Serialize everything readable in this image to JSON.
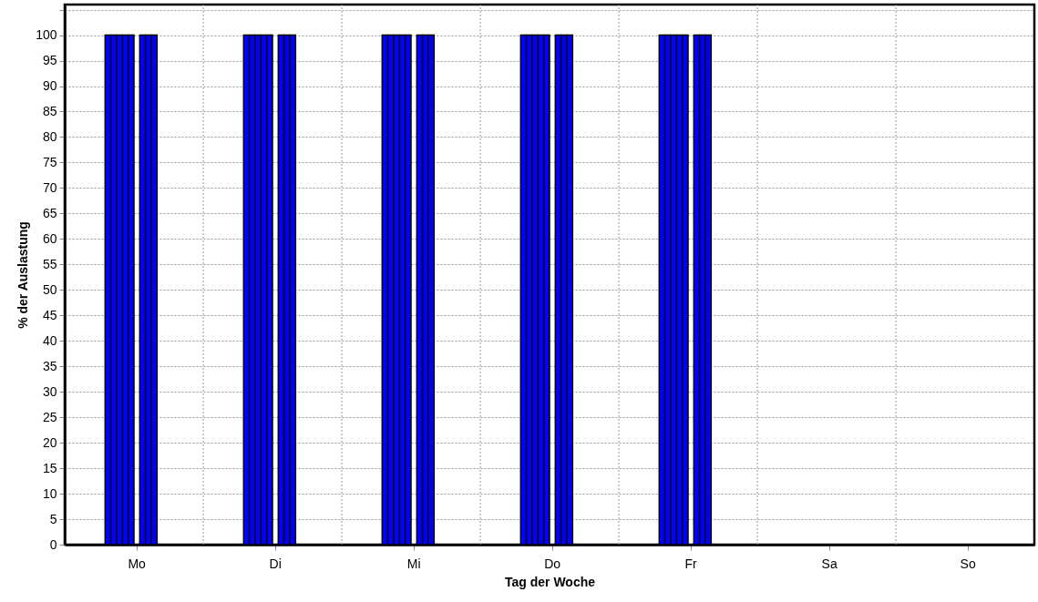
{
  "chart_data": {
    "type": "bar",
    "xlabel": "Tag der Woche",
    "ylabel": "% der Auslastung",
    "categories": [
      null,
      null,
      null,
      null,
      null,
      null,
      null,
      null,
      null,
      null,
      null,
      null,
      "Mo",
      null,
      null,
      null,
      null,
      null,
      null,
      null,
      null,
      null,
      null,
      null,
      null,
      null,
      null,
      null,
      null,
      null,
      null,
      null,
      null,
      null,
      null,
      null,
      "Di",
      null,
      null,
      null,
      null,
      null,
      null,
      null,
      null,
      null,
      null,
      null,
      null,
      null,
      null,
      null,
      null,
      null,
      null,
      null,
      null,
      null,
      null,
      null,
      "Mi",
      null,
      null,
      null,
      null,
      null,
      null,
      null,
      null,
      null,
      null,
      null,
      null,
      null,
      null,
      null,
      null,
      null,
      null,
      null,
      null,
      null,
      null,
      null,
      "Do",
      null,
      null,
      null,
      null,
      null,
      null,
      null,
      null,
      null,
      null,
      null,
      null,
      null,
      null,
      null,
      null,
      null,
      null,
      null,
      null,
      null,
      null,
      null,
      "Fr",
      null,
      null,
      null,
      null,
      null,
      null,
      null,
      null,
      null,
      null,
      null,
      null,
      null,
      null,
      null,
      null,
      null,
      null,
      null,
      null,
      null,
      null,
      null,
      "Sa",
      null,
      null,
      null,
      null,
      null,
      null,
      null,
      null,
      null,
      null,
      null,
      null,
      null,
      null,
      null,
      null,
      null,
      null,
      null,
      null,
      null,
      null,
      null,
      "So",
      null,
      null,
      null,
      null,
      null,
      null,
      null,
      null,
      null,
      null,
      null
    ],
    "series": [
      {
        "color": "#0000ff",
        "values": [
          null,
          null,
          null,
          null,
          null,
          null,
          null,
          100,
          100,
          100,
          100,
          100,
          null,
          100,
          100,
          100,
          null,
          null,
          null,
          null,
          null,
          null,
          null,
          null,
          null,
          null,
          null,
          null,
          null,
          null,
          null,
          100,
          100,
          100,
          100,
          100,
          null,
          100,
          100,
          100,
          null,
          null,
          null,
          null,
          null,
          null,
          null,
          null,
          null,
          null,
          null,
          null,
          null,
          null,
          null,
          100,
          100,
          100,
          100,
          100,
          null,
          100,
          100,
          100,
          null,
          null,
          null,
          null,
          null,
          null,
          null,
          null,
          null,
          null,
          null,
          null,
          null,
          null,
          null,
          100,
          100,
          100,
          100,
          100,
          null,
          100,
          100,
          100,
          null,
          null,
          null,
          null,
          null,
          null,
          null,
          null,
          null,
          null,
          null,
          null,
          null,
          null,
          null,
          100,
          100,
          100,
          100,
          100,
          null,
          100,
          100,
          100,
          null,
          null,
          null,
          null,
          null,
          null,
          null,
          null,
          null,
          null,
          null,
          null,
          null,
          null,
          null,
          null,
          null,
          null,
          null,
          null,
          null,
          null,
          null,
          null,
          null,
          null,
          null,
          null,
          null,
          null,
          null,
          null,
          null,
          null,
          null,
          null,
          null,
          null,
          null,
          null,
          null,
          null,
          null,
          null,
          null,
          null,
          null,
          null,
          null,
          null,
          null,
          null,
          null,
          null,
          null,
          null
        ]
      }
    ],
    "ylim": [
      0,
      106
    ],
    "yticks": [
      0,
      5,
      10,
      15,
      20,
      25,
      30,
      35,
      40,
      45,
      50,
      55,
      60,
      65,
      70,
      75,
      80,
      85,
      90,
      95,
      100,
      {
        "value": 105,
        "label": null
      }
    ],
    "grid": true
  }
}
